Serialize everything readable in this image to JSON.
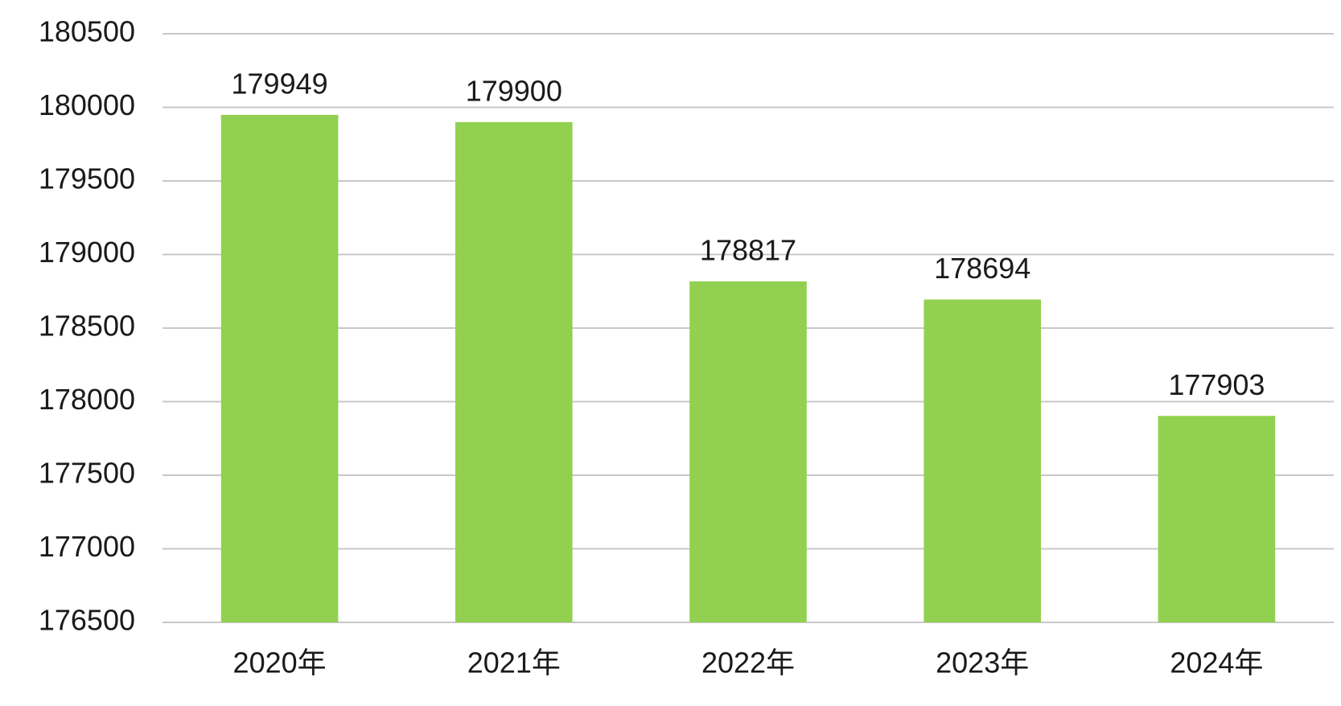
{
  "chart_data": {
    "type": "bar",
    "categories": [
      "2020年",
      "2021年",
      "2022年",
      "2023年",
      "2024年"
    ],
    "values": [
      179949,
      179900,
      178817,
      178694,
      177903
    ],
    "color": "#92d050",
    "ylim": [
      176500,
      180500
    ],
    "yticks": [
      176500,
      177000,
      177500,
      178000,
      178500,
      179000,
      179500,
      180000,
      180500
    ],
    "grid": true,
    "data_labels": true
  }
}
